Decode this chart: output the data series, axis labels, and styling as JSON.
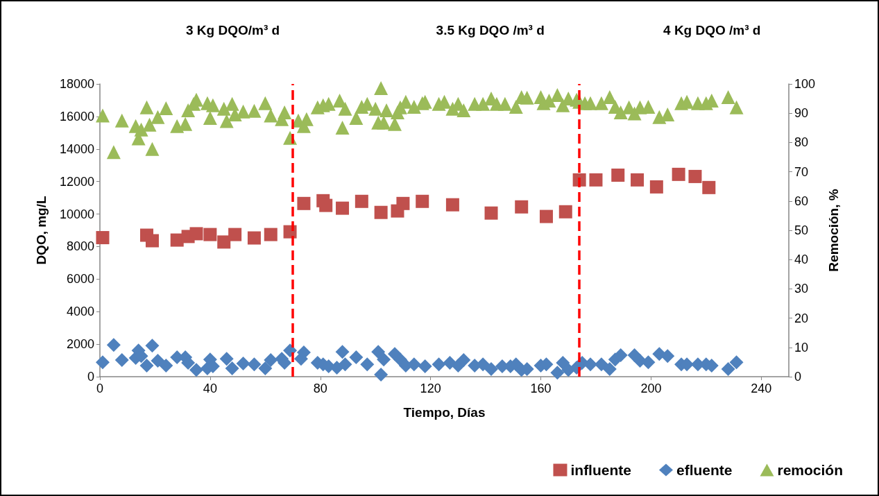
{
  "chart_data": {
    "type": "scatter",
    "xlabel": "Tiempo, Días",
    "ylabel": "DQO, mg/L",
    "y2label": "Remoción, %",
    "annotations": [
      "3 Kg DQO/m³ d",
      "3.5 Kg DQO /m³ d",
      "4 Kg DQO /m³ d"
    ],
    "xlim": [
      0,
      250
    ],
    "xticks": [
      0,
      40,
      80,
      120,
      160,
      200,
      240
    ],
    "ylim": [
      0,
      18000
    ],
    "yticks": [
      0,
      2000,
      4000,
      6000,
      8000,
      10000,
      12000,
      14000,
      16000,
      18000
    ],
    "y2lim": [
      0,
      100
    ],
    "y2ticks": [
      0,
      10,
      20,
      30,
      40,
      50,
      60,
      70,
      80,
      90,
      100
    ],
    "grid": false,
    "legend": "bottom right",
    "ref_lines": [
      {
        "axis": "x",
        "value": 70,
        "color": "#ff0000",
        "line_style": "dashed"
      },
      {
        "axis": "x",
        "value": 174,
        "color": "#ff0000",
        "line_style": "dashed"
      }
    ],
    "series": [
      {
        "name": "influente",
        "color": "#c0504d",
        "marker": "square",
        "x": [
          1,
          17,
          19,
          28,
          32,
          35,
          40,
          45,
          49,
          56,
          62,
          69,
          74,
          81,
          82,
          88,
          95,
          102,
          108,
          110,
          117,
          128,
          142,
          153,
          162,
          169,
          174,
          180,
          188,
          195,
          202,
          210,
          216,
          221
        ],
        "values": [
          8550,
          8700,
          8360,
          8400,
          8620,
          8790,
          8740,
          8280,
          8740,
          8530,
          8740,
          8910,
          10650,
          10820,
          10530,
          10360,
          10780,
          10100,
          10190,
          10650,
          10780,
          10570,
          10060,
          10440,
          9850,
          10140,
          12100,
          12100,
          12390,
          12100,
          11670,
          12440,
          12310,
          11630
        ]
      },
      {
        "name": "efluente",
        "color": "#4f81bd",
        "marker": "diamond",
        "x": [
          1,
          5,
          8,
          13,
          14,
          15,
          17,
          19,
          21,
          24,
          28,
          31,
          32,
          35,
          39,
          40,
          41,
          46,
          48,
          52,
          56,
          60,
          62,
          66,
          67,
          69,
          73,
          74,
          79,
          81,
          83,
          86,
          88,
          89,
          93,
          97,
          101,
          102,
          103,
          107,
          109,
          111,
          114,
          118,
          123,
          127,
          130,
          132,
          136,
          139,
          142,
          146,
          149,
          151,
          153,
          155,
          160,
          162,
          166,
          168,
          170,
          173,
          175,
          178,
          182,
          185,
          187,
          189,
          194,
          196,
          199,
          203,
          206,
          211,
          213,
          217,
          220,
          222,
          228,
          231
        ],
        "values": [
          890,
          1950,
          1020,
          1150,
          1610,
          1270,
          680,
          1910,
          980,
          680,
          1190,
          1190,
          850,
          420,
          510,
          1060,
          640,
          1100,
          510,
          810,
          760,
          510,
          1020,
          1100,
          850,
          1610,
          1100,
          1490,
          850,
          760,
          640,
          550,
          1530,
          760,
          1190,
          760,
          1530,
          130,
          1060,
          1400,
          1060,
          680,
          760,
          640,
          760,
          850,
          680,
          1020,
          680,
          760,
          470,
          640,
          640,
          760,
          420,
          470,
          680,
          760,
          250,
          850,
          420,
          550,
          850,
          760,
          760,
          470,
          1060,
          1320,
          1320,
          980,
          890,
          1400,
          1270,
          760,
          760,
          760,
          760,
          680,
          470,
          890
        ]
      },
      {
        "name": "remoción",
        "color": "#9bbb59",
        "marker": "triangle",
        "axis": "y2",
        "x": [
          1,
          5,
          8,
          13,
          14,
          15,
          17,
          18,
          19,
          21,
          24,
          28,
          31,
          32,
          34,
          35,
          39,
          40,
          41,
          45,
          46,
          48,
          49,
          52,
          56,
          60,
          62,
          66,
          67,
          69,
          72,
          74,
          75,
          79,
          81,
          83,
          87,
          88,
          89,
          93,
          95,
          97,
          100,
          101,
          102,
          103,
          104,
          107,
          108,
          109,
          111,
          114,
          117,
          118,
          123,
          125,
          128,
          130,
          132,
          136,
          139,
          142,
          144,
          147,
          151,
          153,
          155,
          160,
          161,
          163,
          166,
          168,
          170,
          173,
          174,
          176,
          178,
          182,
          185,
          187,
          189,
          192,
          194,
          196,
          199,
          203,
          206,
          211,
          213,
          217,
          220,
          222,
          228,
          231
        ],
        "values": [
          89.2,
          76.7,
          87.5,
          85.6,
          81.4,
          84.4,
          92.0,
          86.1,
          77.8,
          88.7,
          91.7,
          85.6,
          86.3,
          91.0,
          93.2,
          94.6,
          93.4,
          88.4,
          92.7,
          91.5,
          87.3,
          93.2,
          89.6,
          90.6,
          90.8,
          93.4,
          89.2,
          88.0,
          90.3,
          81.6,
          87.5,
          85.6,
          88.0,
          92.0,
          92.7,
          93.2,
          94.3,
          85.1,
          91.5,
          88.4,
          92.2,
          93.2,
          91.5,
          86.8,
          98.6,
          86.8,
          91.0,
          86.3,
          90.3,
          92.0,
          93.9,
          92.2,
          93.4,
          93.9,
          93.2,
          93.9,
          91.5,
          93.2,
          91.0,
          93.2,
          93.2,
          95.0,
          93.2,
          93.2,
          92.2,
          95.5,
          95.3,
          95.5,
          93.4,
          94.3,
          96.2,
          92.7,
          95.0,
          94.6,
          93.9,
          93.4,
          93.4,
          93.4,
          95.5,
          92.2,
          90.3,
          92.0,
          89.9,
          92.0,
          92.2,
          88.7,
          89.6,
          93.4,
          93.9,
          93.4,
          93.4,
          94.3,
          95.5,
          92.0
        ]
      }
    ]
  }
}
